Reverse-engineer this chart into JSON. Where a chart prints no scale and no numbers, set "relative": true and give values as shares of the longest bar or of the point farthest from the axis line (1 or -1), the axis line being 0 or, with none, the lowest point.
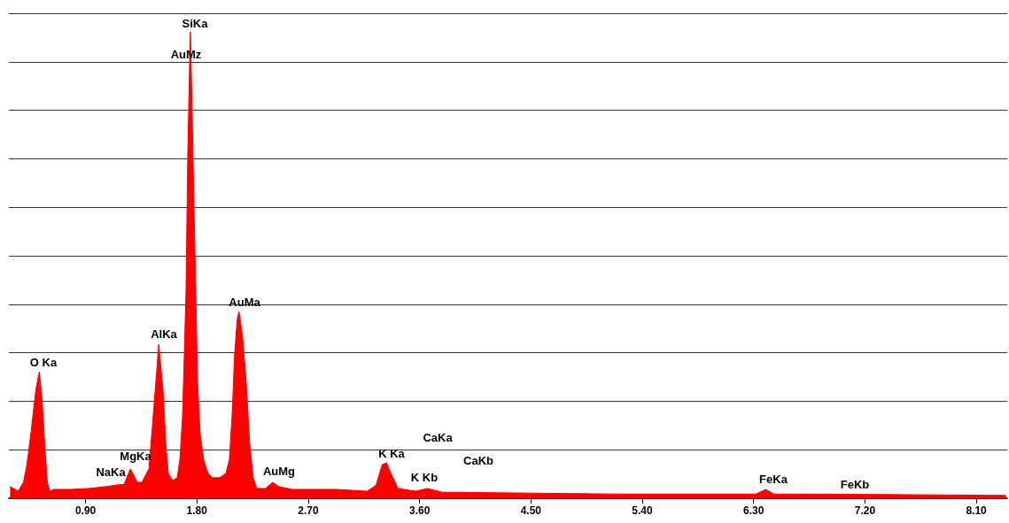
{
  "chart_data": {
    "type": "area",
    "relative": true,
    "color": "#ff0000",
    "grid": "y",
    "marker": "none",
    "x": [
      0.29,
      0.355,
      0.398,
      0.426,
      0.462,
      0.498,
      0.526,
      0.548,
      0.569,
      0.591,
      0.612,
      0.641,
      0.784,
      0.926,
      1.069,
      1.141,
      1.212,
      1.262,
      1.319,
      1.355,
      1.412,
      1.441,
      1.469,
      1.491,
      1.526,
      1.548,
      1.569,
      1.605,
      1.641,
      1.662,
      1.684,
      1.698,
      1.712,
      1.726,
      1.741,
      1.748,
      1.762,
      1.776,
      1.791,
      1.805,
      1.826,
      1.855,
      1.891,
      1.926,
      1.984,
      2.034,
      2.062,
      2.084,
      2.105,
      2.126,
      2.141,
      2.169,
      2.198,
      2.226,
      2.255,
      2.284,
      2.355,
      2.412,
      2.462,
      2.569,
      2.926,
      3.176,
      3.248,
      3.298,
      3.333,
      3.369,
      3.426,
      3.569,
      3.662,
      3.783,
      4.498,
      5.212,
      5.926,
      6.319,
      6.398,
      6.462,
      7.355,
      8.34
    ],
    "values": [
      0.025,
      0.015,
      0.034,
      0.072,
      0.148,
      0.233,
      0.271,
      0.214,
      0.12,
      0.034,
      0.015,
      0.019,
      0.019,
      0.021,
      0.025,
      0.028,
      0.03,
      0.063,
      0.034,
      0.034,
      0.063,
      0.157,
      0.252,
      0.33,
      0.233,
      0.12,
      0.053,
      0.038,
      0.044,
      0.082,
      0.176,
      0.309,
      0.442,
      0.736,
      0.935,
      1,
      0.822,
      0.632,
      0.442,
      0.252,
      0.139,
      0.082,
      0.053,
      0.044,
      0.044,
      0.053,
      0.082,
      0.176,
      0.309,
      0.385,
      0.4,
      0.347,
      0.252,
      0.12,
      0.044,
      0.021,
      0.021,
      0.034,
      0.025,
      0.019,
      0.019,
      0.015,
      0.028,
      0.072,
      0.076,
      0.053,
      0.021,
      0.015,
      0.021,
      0.013,
      0.011,
      0.009,
      0.009,
      0.009,
      0.019,
      0.009,
      0.008,
      0.006
    ],
    "xlim": [
      0.28,
      8.35
    ],
    "xticks": [
      {
        "value": 0.9,
        "label": "0.90"
      },
      {
        "value": 1.8,
        "label": "1.80"
      },
      {
        "value": 2.7,
        "label": "2.70"
      },
      {
        "value": 3.6,
        "label": "3.60"
      },
      {
        "value": 4.5,
        "label": "4.50"
      },
      {
        "value": 5.4,
        "label": "5.40"
      },
      {
        "value": 6.3,
        "label": "6.30"
      },
      {
        "value": 7.2,
        "label": "7.20"
      },
      {
        "value": 8.1,
        "label": "8.10"
      }
    ],
    "annotations": [
      "O Ka",
      "NaKa",
      "MgKa",
      "AlKa",
      "SiKa",
      "AuMz",
      "AuMa",
      "AuMg",
      "K Ka",
      "CaKa",
      "K Kb",
      "CaKb",
      "FeKa",
      "FeKb"
    ]
  }
}
